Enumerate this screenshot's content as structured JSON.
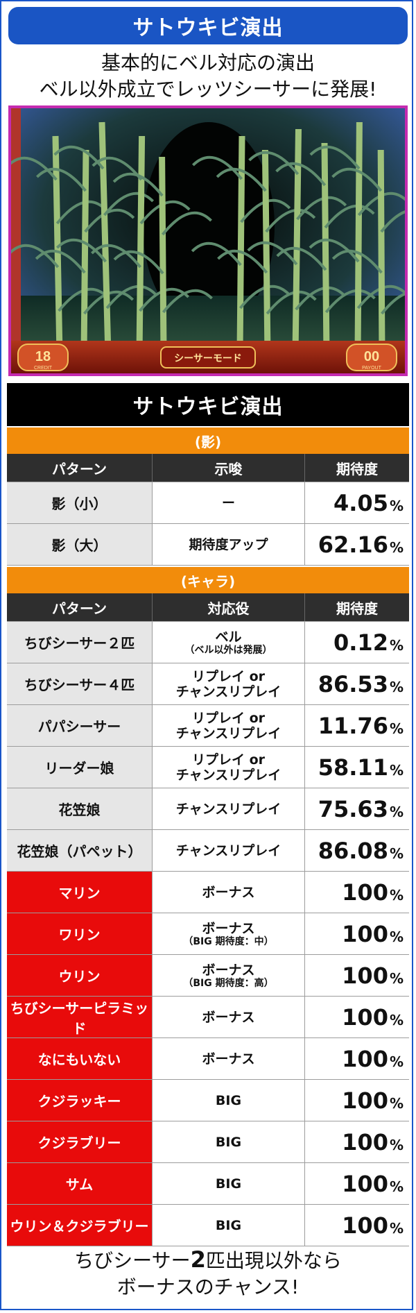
{
  "header": {
    "title": "サトウキビ演出"
  },
  "intro": {
    "line1": "基本的にベル対応の演出",
    "line2": "ベル以外成立でレッツシーサーに発展!"
  },
  "scene": {
    "credit": "18",
    "credit_label": "CREDIT",
    "mode": "シーサーモード",
    "payout": "00",
    "payout_label": "PAYOUT"
  },
  "table": {
    "title": "サトウキビ演出",
    "section1": {
      "label": "(影)",
      "headers": [
        "パターン",
        "示唆",
        "期待度"
      ],
      "rows": [
        {
          "pattern": "影（小）",
          "hint": "ー",
          "sub": "",
          "value": "4.05",
          "pct": "%"
        },
        {
          "pattern": "影（大）",
          "hint": "期待度アップ",
          "sub": "",
          "value": "62.16",
          "pct": "%"
        }
      ]
    },
    "section2": {
      "label": "(キャラ)",
      "headers": [
        "パターン",
        "対応役",
        "期待度"
      ],
      "rows": [
        {
          "pattern": "ちびシーサー２匹",
          "hint": "ベル",
          "sub": "（ベル以外は発展）",
          "value": "0.12",
          "pct": "%"
        },
        {
          "pattern": "ちびシーサー４匹",
          "hint": "リプレイ or",
          "sub": "チャンスリプレイ",
          "value": "86.53",
          "pct": "%"
        },
        {
          "pattern": "パパシーサー",
          "hint": "リプレイ or",
          "sub": "チャンスリプレイ",
          "value": "11.76",
          "pct": "%"
        },
        {
          "pattern": "リーダー娘",
          "hint": "リプレイ or",
          "sub": "チャンスリプレイ",
          "value": "58.11",
          "pct": "%"
        },
        {
          "pattern": "花笠娘",
          "hint": "チャンスリプレイ",
          "sub": "",
          "value": "75.63",
          "pct": "%"
        },
        {
          "pattern": "花笠娘（パペット）",
          "hint": "チャンスリプレイ",
          "sub": "",
          "value": "86.08",
          "pct": "%"
        },
        {
          "pattern": "マリン",
          "hint": "ボーナス",
          "sub": "",
          "value": "100",
          "pct": "%"
        },
        {
          "pattern": "ワリン",
          "hint": "ボーナス",
          "sub": "（BIG 期待度：中）",
          "value": "100",
          "pct": "%"
        },
        {
          "pattern": "ウリン",
          "hint": "ボーナス",
          "sub": "（BIG 期待度：高）",
          "value": "100",
          "pct": "%"
        },
        {
          "pattern": "ちびシーサーピラミッド",
          "hint": "ボーナス",
          "sub": "",
          "value": "100",
          "pct": "%"
        },
        {
          "pattern": "なにもいない",
          "hint": "ボーナス",
          "sub": "",
          "value": "100",
          "pct": "%"
        },
        {
          "pattern": "クジラッキー",
          "hint": "BIG",
          "sub": "",
          "value": "100",
          "pct": "%"
        },
        {
          "pattern": "クジラブリー",
          "hint": "BIG",
          "sub": "",
          "value": "100",
          "pct": "%"
        },
        {
          "pattern": "サム",
          "hint": "BIG",
          "sub": "",
          "value": "100",
          "pct": "%"
        },
        {
          "pattern": "ウリン＆クジラブリー",
          "hint": "BIG",
          "sub": "",
          "value": "100",
          "pct": "%"
        }
      ]
    }
  },
  "outro": {
    "line1_pre": "ちびシーサー",
    "line1_num": "2",
    "line1_post": "匹出現以外なら",
    "line2": "ボーナスのチャンス!"
  },
  "colors": {
    "title_blue": "#1a55c4",
    "section_orange": "#f28c0b",
    "bonus_red": "#e80b0b",
    "scene_border": "#c42bb0"
  }
}
